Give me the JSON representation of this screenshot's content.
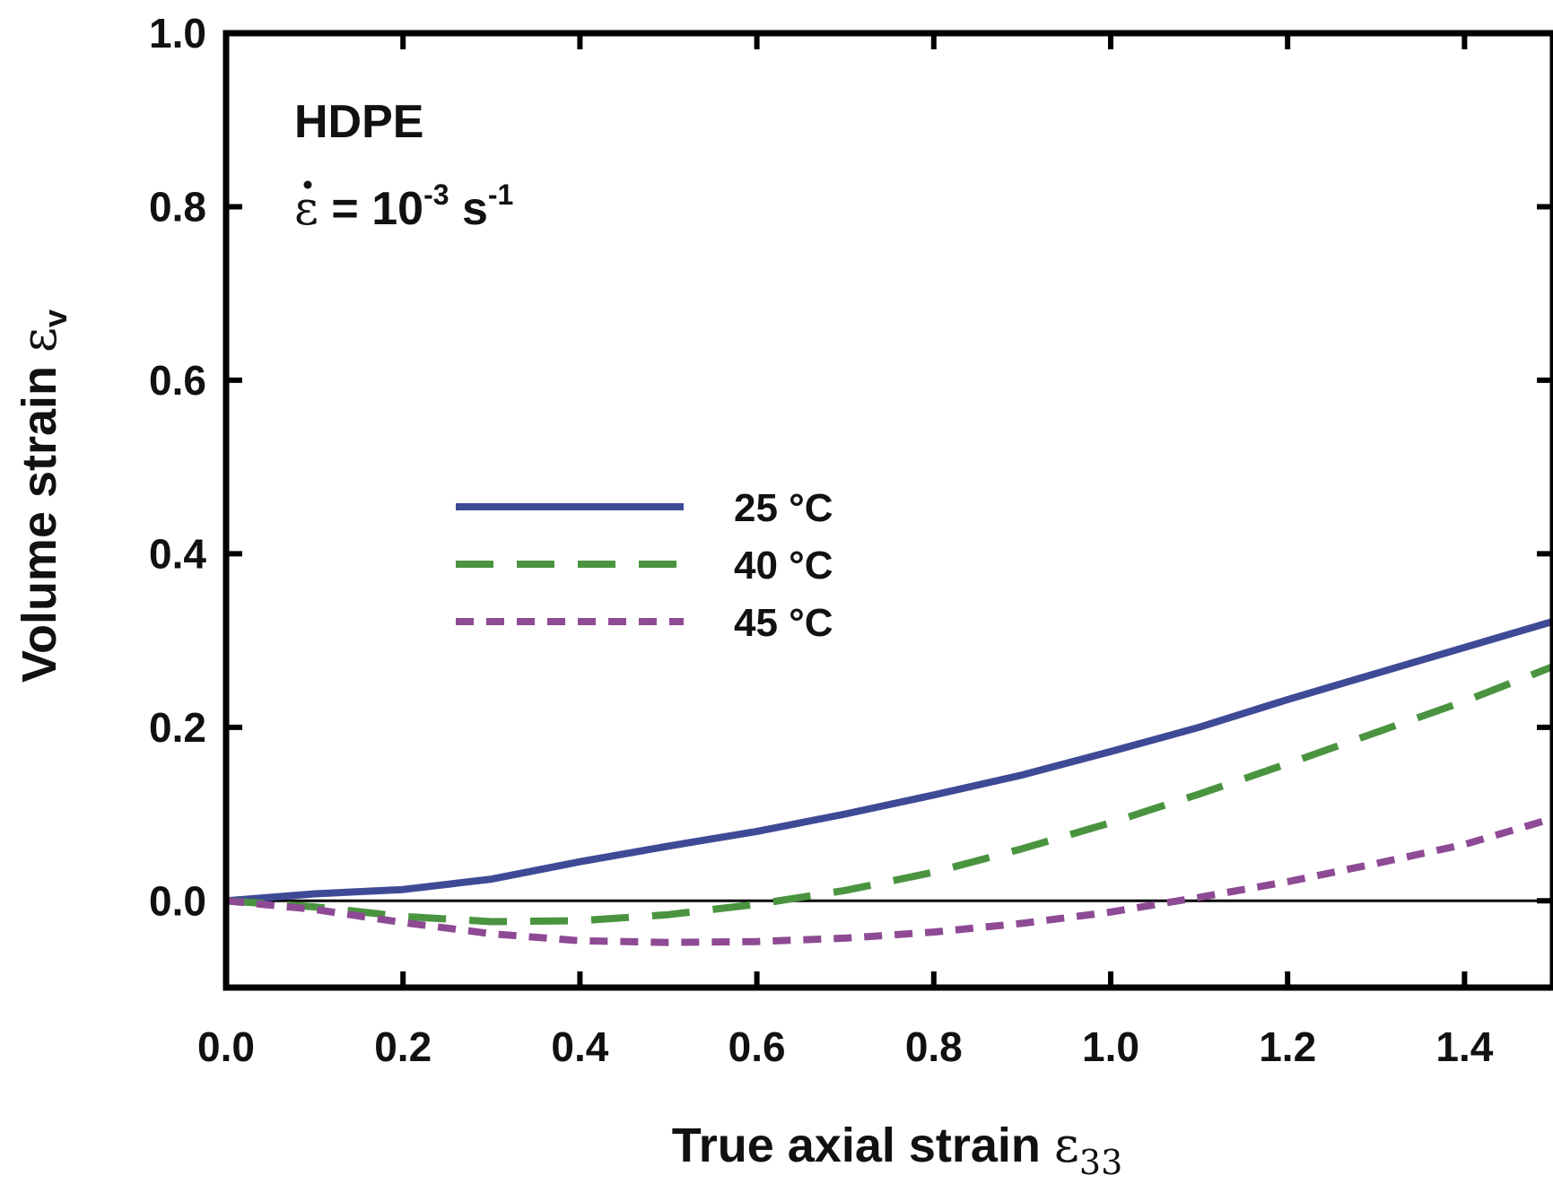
{
  "chart_data": {
    "type": "line",
    "title": "",
    "xlabel": {
      "main": "True axial strain ",
      "symbol": "ε",
      "sub": "33"
    },
    "ylabel": {
      "main": "Volume strain ",
      "symbol": "ε",
      "sub": "v"
    },
    "xlim": [
      0,
      1.5
    ],
    "ylim": [
      -0.1,
      1.0
    ],
    "x_ticks": [
      "0.0",
      "0.2",
      "0.4",
      "0.6",
      "0.8",
      "1.0",
      "1.2",
      "1.4"
    ],
    "x_tick_values": [
      0,
      0.2,
      0.4,
      0.6,
      0.8,
      1.0,
      1.2,
      1.4
    ],
    "y_ticks": [
      "0.0",
      "0.2",
      "0.4",
      "0.6",
      "0.8",
      "1.0"
    ],
    "y_tick_values": [
      0,
      0.2,
      0.4,
      0.6,
      0.8,
      1.0
    ],
    "zero_line": true,
    "grid": false,
    "legend_position": "center-left",
    "annotations": {
      "material": "HDPE",
      "rate": {
        "symbol": "ε",
        "eq": " = 10",
        "exp1": "-3",
        "unit": " s",
        "exp2": "-1"
      }
    },
    "series": [
      {
        "name": "25 °C",
        "color": "#3f4a96",
        "style": "solid",
        "x": [
          0,
          0.1,
          0.2,
          0.3,
          0.4,
          0.5,
          0.6,
          0.7,
          0.8,
          0.9,
          1.0,
          1.1,
          1.2,
          1.3,
          1.4,
          1.5
        ],
        "y": [
          0,
          0.008,
          0.013,
          0.025,
          0.045,
          0.063,
          0.08,
          0.1,
          0.122,
          0.145,
          0.172,
          0.2,
          0.232,
          0.262,
          0.292,
          0.322
        ]
      },
      {
        "name": "40 °C",
        "color": "#4a9440",
        "style": "dashed",
        "x": [
          0,
          0.1,
          0.2,
          0.3,
          0.4,
          0.5,
          0.6,
          0.7,
          0.8,
          0.9,
          1.0,
          1.1,
          1.2,
          1.3,
          1.4,
          1.5
        ],
        "y": [
          0,
          -0.007,
          -0.018,
          -0.024,
          -0.023,
          -0.016,
          -0.004,
          0.012,
          0.033,
          0.06,
          0.09,
          0.123,
          0.158,
          0.194,
          0.23,
          0.27
        ]
      },
      {
        "name": "45 °C",
        "color": "#8e4a94",
        "style": "dotted",
        "x": [
          0,
          0.1,
          0.2,
          0.3,
          0.4,
          0.5,
          0.6,
          0.7,
          0.8,
          0.9,
          1.0,
          1.1,
          1.2,
          1.3,
          1.4,
          1.5
        ],
        "y": [
          0,
          -0.01,
          -0.025,
          -0.038,
          -0.046,
          -0.048,
          -0.047,
          -0.043,
          -0.036,
          -0.026,
          -0.013,
          0.004,
          0.022,
          0.043,
          0.065,
          0.095
        ]
      }
    ]
  }
}
